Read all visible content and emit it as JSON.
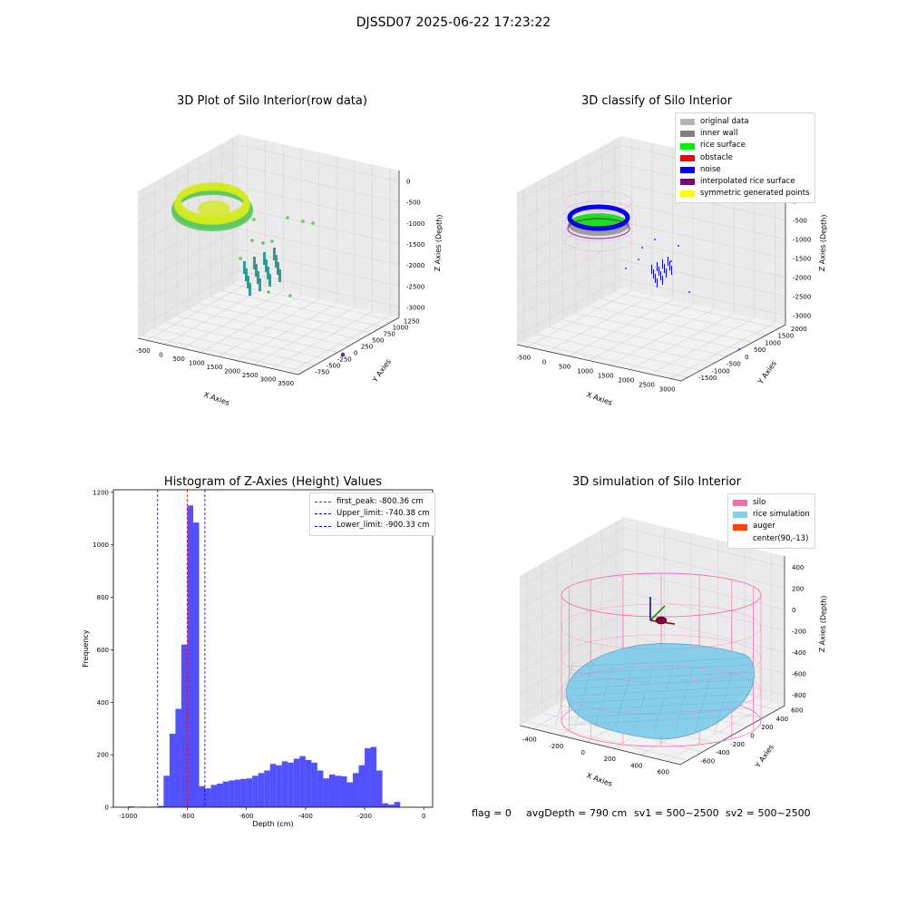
{
  "suptitle": "DJSSD07 2025-06-22 17:23:22",
  "footer": {
    "flag": "flag = 0",
    "avgdepth": "avgDepth = 790 cm",
    "sv1": "sv1 = 500~2500",
    "sv2": "sv2 = 500~2500"
  },
  "chart_data": [
    {
      "type": "scatter",
      "title": "3D Plot of Silo Interior(row data)",
      "xlabel": "X Axies",
      "ylabel": "Y Axies",
      "zlabel": "Z Axies (Depth)",
      "x_ticks": [
        "-500",
        "0",
        "500",
        "1000",
        "1500",
        "2000",
        "2500",
        "3000",
        "3500"
      ],
      "y_ticks": [
        "-750",
        "-500",
        "-250",
        "0",
        "250",
        "500",
        "750",
        "1000",
        "1250"
      ],
      "z_ticks": [
        "-3000",
        "-2500",
        "-2000",
        "-1500",
        "-1000",
        "-500",
        "0"
      ],
      "colors": {
        "high": "#d4ea1f",
        "mid": "#5cc863",
        "low": "#21918c",
        "outlier": "#6a2a8a"
      }
    },
    {
      "type": "scatter",
      "title": "3D classify of Silo Interior",
      "xlabel": "X Axies",
      "ylabel": "Y Axies",
      "zlabel": "Z Axies (Depth)",
      "x_ticks": [
        "-500",
        "0",
        "500",
        "1000",
        "1500",
        "2000",
        "2500",
        "3000"
      ],
      "y_ticks": [
        "-1500",
        "-1000",
        "-500",
        "0",
        "500",
        "1000",
        "1500",
        "2000"
      ],
      "z_ticks": [
        "-3000",
        "-2500",
        "-2000",
        "-1500",
        "-1000",
        "-500",
        "0",
        "500"
      ],
      "legend": [
        {
          "label": "original data",
          "color": "#b4b4b4"
        },
        {
          "label": "inner wall",
          "color": "#808080"
        },
        {
          "label": "rice surface",
          "color": "#00ee00"
        },
        {
          "label": "obstacle",
          "color": "#ff0000"
        },
        {
          "label": "noise",
          "color": "#0000ee"
        },
        {
          "label": "interpolated rice surface",
          "color": "#800080"
        },
        {
          "label": "symmetric generated points",
          "color": "#ffff00"
        }
      ]
    },
    {
      "type": "bar",
      "title": "Histogram of Z-Axies (Height) Values",
      "xlabel": "Depth (cm)",
      "ylabel": "Frequency",
      "xlim": [
        -1050,
        30
      ],
      "ylim": [
        0,
        1210
      ],
      "x_ticks": [
        -1000,
        -800,
        -600,
        -400,
        -200,
        0
      ],
      "y_ticks": [
        0,
        200,
        400,
        600,
        800,
        1000,
        1200
      ],
      "bin_width": 20,
      "bin_starts": [
        -1000,
        -960,
        -920,
        -900,
        -880,
        -860,
        -840,
        -820,
        -800,
        -780,
        -760,
        -740,
        -720,
        -700,
        -680,
        -660,
        -640,
        -620,
        -600,
        -580,
        -560,
        -540,
        -520,
        -500,
        -480,
        -460,
        -440,
        -420,
        -400,
        -380,
        -360,
        -340,
        -320,
        -300,
        -280,
        -260,
        -240,
        -220,
        -200,
        -180,
        -160,
        -140,
        -120,
        -100,
        -80,
        -60,
        -40,
        -20
      ],
      "values": [
        3,
        2,
        2,
        5,
        120,
        280,
        375,
        620,
        1150,
        1085,
        80,
        72,
        85,
        90,
        98,
        102,
        105,
        108,
        110,
        120,
        130,
        140,
        165,
        160,
        175,
        170,
        185,
        195,
        180,
        170,
        140,
        110,
        125,
        120,
        118,
        95,
        130,
        160,
        225,
        230,
        140,
        15,
        10,
        20,
        0,
        0,
        0,
        0
      ],
      "color": "#3333ff",
      "lines": [
        {
          "label": "first_peak: -800.36 cm",
          "x": -800.36,
          "color": "#ff0000"
        },
        {
          "label": "Upper_limit: -740.38 cm",
          "x": -740.38,
          "color": "#0000cc"
        },
        {
          "label": "Lower_limit: -900.33 cm",
          "x": -900.33,
          "color": "#0000cc"
        }
      ]
    },
    {
      "type": "surface",
      "title": "3D simulation of Silo Interior",
      "xlabel": "X Axies",
      "ylabel": "Y Axies",
      "zlabel": "Z Axies (Depth)",
      "x_ticks": [
        "-400",
        "-200",
        "0",
        "200",
        "400",
        "600"
      ],
      "y_ticks": [
        "-600",
        "-400",
        "-200",
        "0",
        "200",
        "400",
        "600"
      ],
      "z_ticks": [
        "-800",
        "-600",
        "-400",
        "-200",
        "0",
        "200",
        "400"
      ],
      "legend": [
        {
          "label": "silo",
          "color": "#ff69b4"
        },
        {
          "label": "rice simulation",
          "color": "#87ceeb"
        },
        {
          "label": "auger",
          "color": "#ff4500"
        },
        {
          "label": "center(90,-13)",
          "color": ""
        }
      ]
    }
  ]
}
